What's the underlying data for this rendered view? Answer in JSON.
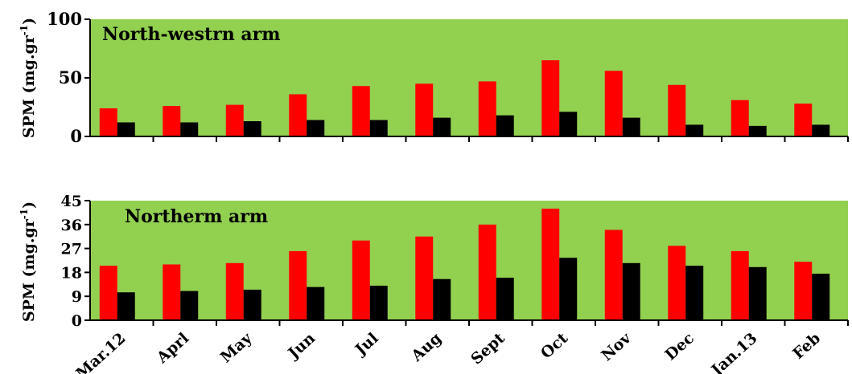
{
  "chart_data": [
    {
      "type": "bar",
      "annotation": "North-westrn arm",
      "ylabel": "SPM (mg.gr",
      "ylabel_sup": "-1",
      "ylabel_close": ")",
      "ylim": [
        0,
        100
      ],
      "yticks": [
        "0",
        "50",
        "100"
      ],
      "ytick_values": [
        0,
        50,
        100
      ],
      "background_color": "#92d050",
      "categories": [
        "Mar.12",
        "Aprl",
        "May",
        "Jun",
        "Jul",
        "Aug",
        "Sept",
        "Oct",
        "Nov",
        "Dec",
        "Jan.13",
        "Feb"
      ],
      "series": [
        {
          "color": "#ff0000",
          "values": [
            24,
            26,
            27,
            36,
            43,
            45,
            47,
            65,
            56,
            44,
            31,
            28
          ]
        },
        {
          "color": "#000000",
          "values": [
            12,
            12,
            13,
            14,
            14,
            16,
            18,
            21,
            16,
            10,
            9,
            10
          ]
        }
      ]
    },
    {
      "type": "bar",
      "annotation": "Northerm arm",
      "ylabel": "SPM (mg.gr",
      "ylabel_sup": "-1",
      "ylabel_close": ")",
      "ylim": [
        0,
        45
      ],
      "yticks": [
        "0",
        "9",
        "18",
        "27",
        "36",
        "45"
      ],
      "ytick_values": [
        0,
        9,
        18,
        27,
        36,
        45
      ],
      "background_color": "#92d050",
      "categories": [
        "Mar.12",
        "Aprl",
        "May",
        "Jun",
        "Jul",
        "Aug",
        "Sept",
        "Oct",
        "Nov",
        "Dec",
        "Jan.13",
        "Feb"
      ],
      "series": [
        {
          "color": "#ff0000",
          "values": [
            20.5,
            21,
            21.5,
            26,
            30,
            31.5,
            36,
            42,
            34,
            28,
            26,
            22
          ]
        },
        {
          "color": "#000000",
          "values": [
            10.5,
            11,
            11.5,
            12.5,
            13,
            15.5,
            16,
            23.5,
            21.5,
            20.5,
            20,
            17.5
          ]
        }
      ]
    }
  ]
}
